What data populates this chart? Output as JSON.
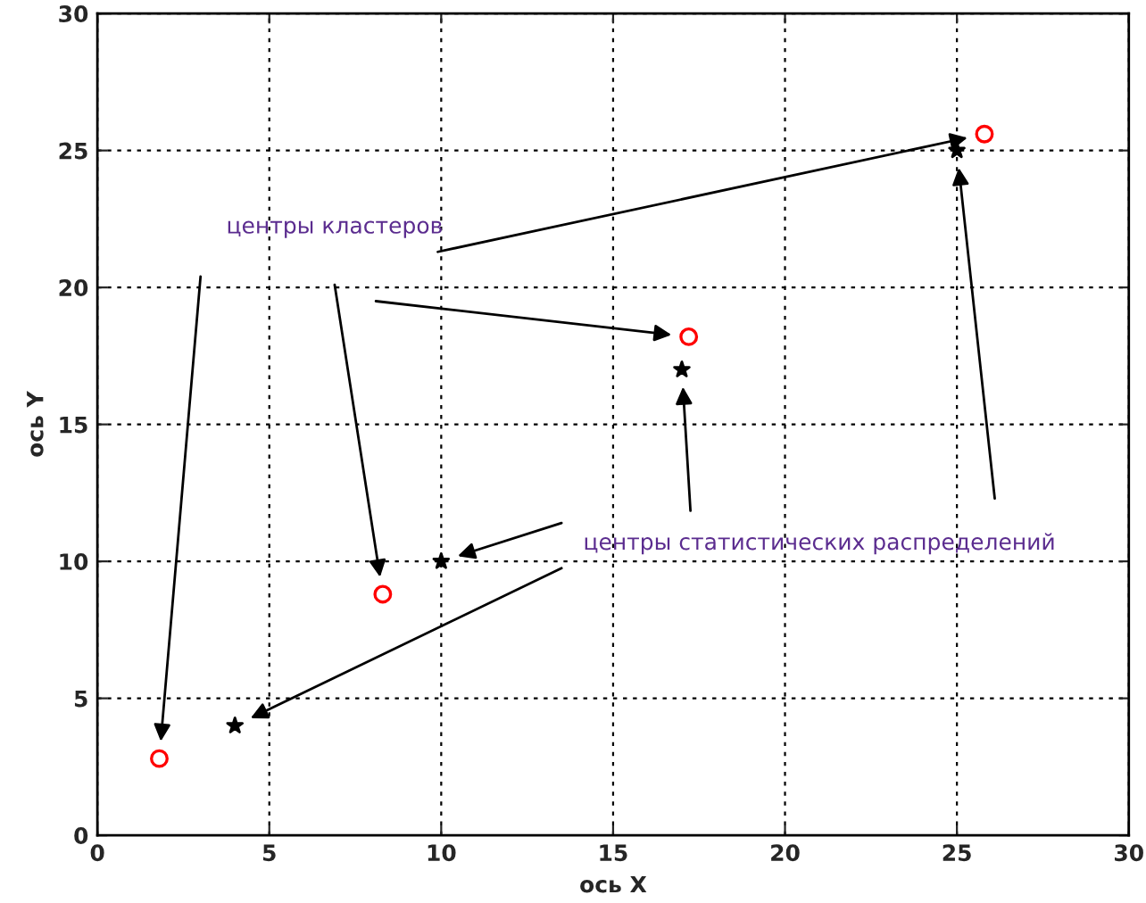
{
  "chart_data": {
    "type": "scatter",
    "xlabel": "ось X",
    "ylabel": "ось Y",
    "xlim": [
      0,
      30
    ],
    "ylim": [
      0,
      30
    ],
    "xticks": [
      0,
      5,
      10,
      15,
      20,
      25,
      30
    ],
    "yticks": [
      0,
      5,
      10,
      15,
      20,
      25,
      30
    ],
    "grid": true,
    "series": [
      {
        "marker": "circle",
        "color": "#ff0000",
        "x": [
          1.8,
          8.3,
          17.2,
          25.8
        ],
        "values": [
          2.8,
          8.8,
          18.2,
          25.6
        ]
      },
      {
        "marker": "star",
        "color": "#000000",
        "x": [
          4,
          10,
          17,
          25
        ],
        "values": [
          4,
          10,
          17,
          25
        ]
      }
    ],
    "annotations": [
      "центры кластеров",
      "центры статистических распределений"
    ]
  }
}
